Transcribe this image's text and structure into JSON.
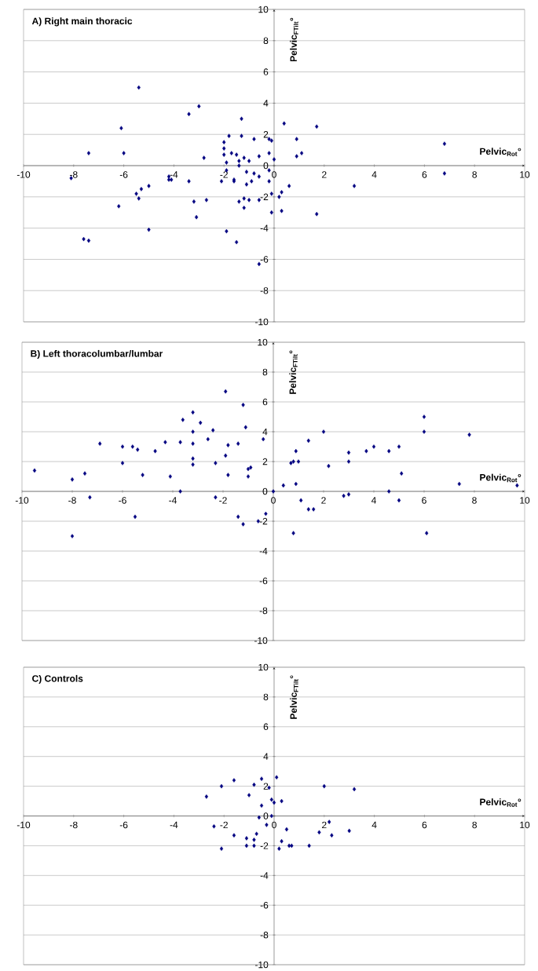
{
  "chart_data": [
    {
      "type": "scatter",
      "title": "A) Right main thoracic",
      "xlabel": "Pelvic$_{Rot}$°",
      "ylabel": "Pelvic$_{FTilt}$°",
      "marker": "diamond",
      "grid": "y",
      "xlim": [
        -10,
        10
      ],
      "ylim": [
        -10,
        10
      ],
      "xticks": [
        -10,
        -8,
        -6,
        -4,
        -2,
        0,
        2,
        4,
        6,
        8,
        10
      ],
      "yticks": [
        -10,
        -8,
        -6,
        -4,
        -2,
        0,
        2,
        4,
        6,
        8,
        10
      ],
      "series": [
        {
          "color": "#000080",
          "x": [
            -8.1,
            -7.4,
            -7.6,
            -7.4,
            -6.1,
            -6.0,
            -6.2,
            -5.4,
            -5.5,
            -5.4,
            -5.3,
            -5.0,
            -5.0,
            -4.2,
            -4.2,
            -4.1,
            -3.4,
            -3.0,
            -3.4,
            -3.2,
            -2.8,
            -2.7,
            -3.1,
            -2.1,
            -2.0,
            -2.0,
            -2.0,
            -1.9,
            -1.9,
            -1.9,
            -1.8,
            -1.7,
            -1.6,
            -1.6,
            -1.5,
            -1.5,
            -1.4,
            -1.4,
            -1.4,
            -1.3,
            -1.3,
            -1.2,
            -1.2,
            -1.2,
            -1.1,
            -1.1,
            -1.0,
            -1.0,
            -0.9,
            -0.8,
            -0.8,
            -0.6,
            -0.6,
            -0.6,
            -0.6,
            -0.2,
            -0.2,
            -0.2,
            -0.2,
            -0.1,
            -0.1,
            -0.1,
            0.0,
            0.4,
            0.3,
            0.2,
            0.3,
            0.6,
            0.9,
            0.9,
            1.1,
            1.7,
            1.7,
            3.2,
            6.8,
            6.8
          ],
          "values": [
            -0.8,
            0.8,
            -4.7,
            -4.8,
            2.4,
            0.8,
            -2.6,
            5.0,
            -1.8,
            -2.1,
            -1.5,
            -1.3,
            -4.1,
            -0.9,
            -0.7,
            -0.9,
            3.3,
            3.8,
            -1.0,
            -2.3,
            0.5,
            -2.2,
            -3.3,
            -1.0,
            1.5,
            1.1,
            0.7,
            0.2,
            -0.3,
            -4.2,
            1.9,
            0.8,
            -0.9,
            -1.0,
            -4.9,
            0.7,
            0.0,
            0.3,
            -2.3,
            3.0,
            1.9,
            0.5,
            -2.7,
            -2.1,
            -0.4,
            -1.2,
            0.3,
            -2.2,
            -1.0,
            -0.5,
            1.7,
            0.6,
            -6.3,
            -0.7,
            -2.2,
            -0.3,
            -1.0,
            0.8,
            1.7,
            1.6,
            -1.8,
            -3.0,
            0.4,
            2.7,
            -1.7,
            -2.0,
            -2.9,
            -1.3,
            1.7,
            0.6,
            0.8,
            2.5,
            -3.1,
            -1.3,
            1.4,
            -0.5
          ]
        }
      ]
    },
    {
      "type": "scatter",
      "title": "B) Left thoracolumbar/lumbar",
      "xlabel": "Pelvic$_{Rot}$°",
      "ylabel": "Pelvic$_{FTilt}$°",
      "marker": "diamond",
      "grid": "y",
      "xlim": [
        -10,
        10
      ],
      "ylim": [
        -10,
        10
      ],
      "xticks": [
        -10,
        -8,
        -6,
        -4,
        -2,
        0,
        2,
        4,
        6,
        8,
        10
      ],
      "yticks": [
        -10,
        -8,
        -6,
        -4,
        -2,
        0,
        2,
        4,
        6,
        8,
        10
      ],
      "series": [
        {
          "color": "#000080",
          "x": [
            -9.5,
            -8.0,
            -8.0,
            -7.5,
            -7.3,
            -6.9,
            -6.0,
            -6.0,
            -5.6,
            -5.4,
            -5.2,
            -5.5,
            -4.7,
            -4.3,
            -4.1,
            -3.7,
            -3.7,
            -3.6,
            -3.2,
            -3.2,
            -3.2,
            -3.2,
            -3.2,
            -2.9,
            -2.6,
            -2.4,
            -2.3,
            -2.3,
            -1.9,
            -1.9,
            -1.8,
            -1.8,
            -1.4,
            -1.4,
            -1.2,
            -1.1,
            -1.0,
            -0.9,
            -1.0,
            -1.2,
            -0.6,
            -0.4,
            -0.3,
            0.0,
            0.4,
            0.7,
            0.8,
            0.9,
            0.9,
            0.8,
            1.0,
            1.1,
            1.4,
            1.4,
            1.6,
            2.0,
            2.2,
            2.8,
            3.0,
            3.0,
            3.0,
            3.7,
            4.0,
            4.6,
            4.6,
            5.0,
            5.0,
            5.1,
            6.0,
            6.0,
            6.1,
            7.8,
            7.4,
            9.7
          ],
          "values": [
            1.4,
            0.8,
            -3.0,
            1.2,
            -0.4,
            3.2,
            3.0,
            1.9,
            3.0,
            2.8,
            1.1,
            -1.7,
            2.7,
            3.3,
            1.0,
            3.3,
            0.0,
            4.8,
            5.3,
            4.0,
            3.2,
            2.2,
            1.8,
            4.6,
            3.5,
            4.1,
            1.9,
            -0.4,
            6.7,
            2.4,
            1.1,
            3.1,
            -1.7,
            3.2,
            5.8,
            4.3,
            1.5,
            1.6,
            1.0,
            -2.2,
            -2.0,
            3.5,
            -1.5,
            0.0,
            0.4,
            1.9,
            2.0,
            2.7,
            0.5,
            -2.8,
            2.0,
            -0.6,
            3.4,
            -1.2,
            -1.2,
            4.0,
            1.7,
            -0.3,
            -0.2,
            2.6,
            2.0,
            2.7,
            3.0,
            2.7,
            0.0,
            3.0,
            -0.6,
            1.2,
            5.0,
            4.0,
            -2.8,
            3.8,
            0.5,
            0.4
          ]
        }
      ]
    },
    {
      "type": "scatter",
      "title": "C) Controls",
      "xlabel": "Pelvic$_{Rot}$°",
      "ylabel": "Pelvic$_{FTilt}$°",
      "marker": "diamond",
      "grid": "y",
      "xlim": [
        -10,
        10
      ],
      "ylim": [
        -10,
        10
      ],
      "xticks": [
        -10,
        -8,
        -6,
        -4,
        -2,
        0,
        2,
        4,
        6,
        8,
        10
      ],
      "yticks": [
        -10,
        -8,
        -6,
        -4,
        -2,
        0,
        2,
        4,
        6,
        8,
        10
      ],
      "series": [
        {
          "color": "#000080",
          "x": [
            -2.7,
            -2.4,
            -2.1,
            -2.1,
            -1.6,
            -1.6,
            -1.1,
            -1.1,
            -1.0,
            -0.8,
            -0.8,
            -0.8,
            -0.7,
            -0.5,
            -0.6,
            -0.5,
            -0.3,
            -0.2,
            -0.1,
            -0.1,
            0.0,
            0.1,
            0.2,
            0.3,
            0.3,
            0.5,
            0.6,
            0.7,
            1.4,
            1.8,
            2.0,
            2.2,
            2.3,
            3.0,
            3.2
          ],
          "values": [
            1.3,
            -0.7,
            2.0,
            -2.2,
            2.4,
            -1.3,
            -1.5,
            -2.0,
            1.4,
            -1.6,
            -2.0,
            2.1,
            -1.2,
            0.7,
            -0.1,
            2.5,
            -0.6,
            1.9,
            0.0,
            1.1,
            0.9,
            2.6,
            -2.2,
            -1.7,
            1.0,
            -0.9,
            -2.0,
            -2.0,
            -2.0,
            -1.1,
            2.0,
            -0.4,
            -1.3,
            -1.0,
            1.8
          ]
        }
      ]
    }
  ]
}
